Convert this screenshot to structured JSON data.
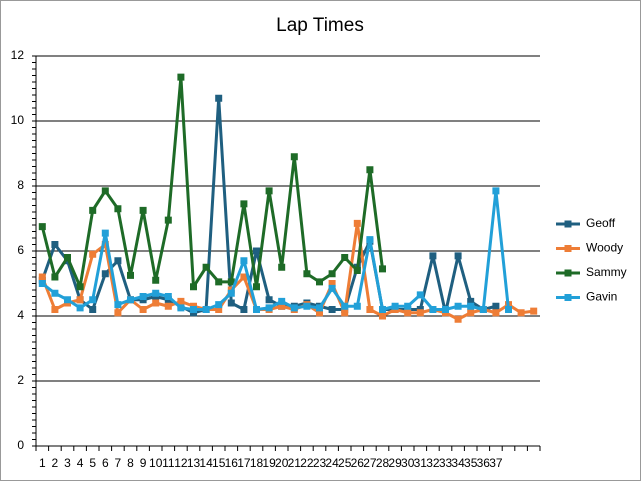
{
  "chart_data": {
    "type": "line",
    "title": "Lap Times",
    "categories": [
      "1",
      "2",
      "3",
      "4",
      "5",
      "6",
      "7",
      "8",
      "9",
      "10",
      "11",
      "12",
      "13",
      "14",
      "15",
      "16",
      "17",
      "18",
      "19",
      "20",
      "21",
      "22",
      "23",
      "24",
      "25",
      "26",
      "27",
      "28",
      "29",
      "30",
      "31",
      "32",
      "33",
      "34",
      "35",
      "36",
      "37",
      null,
      null,
      null
    ],
    "ylim": [
      0,
      12
    ],
    "yticks": [
      0,
      2,
      4,
      6,
      8,
      10,
      12
    ],
    "grid": true,
    "legend": "right",
    "series": [
      {
        "name": "Geoff",
        "color": "#1f5f80",
        "values": [
          5.1,
          6.2,
          5.7,
          4.5,
          4.2,
          5.3,
          5.7,
          4.5,
          4.5,
          4.6,
          4.5,
          4.3,
          4.1,
          4.2,
          10.7,
          4.4,
          4.2,
          6.0,
          4.5,
          4.3,
          4.3,
          4.4,
          4.3,
          4.2,
          4.2,
          5.5,
          6.3,
          4.2,
          4.2,
          4.2,
          4.2,
          5.85,
          4.1,
          5.85,
          4.45,
          4.2,
          4.3,
          null,
          null,
          null
        ]
      },
      {
        "name": "Woody",
        "color": "#ee7d36",
        "values": [
          5.2,
          4.2,
          4.4,
          4.5,
          5.9,
          6.2,
          4.1,
          4.5,
          4.2,
          4.4,
          4.3,
          4.45,
          4.3,
          4.2,
          4.2,
          4.8,
          5.2,
          4.2,
          4.2,
          4.3,
          4.2,
          4.35,
          4.1,
          5.0,
          4.1,
          6.85,
          4.2,
          4.0,
          4.2,
          4.1,
          4.1,
          4.2,
          4.1,
          3.9,
          4.1,
          4.2,
          4.1,
          4.35,
          4.1,
          4.15
        ]
      },
      {
        "name": "Sammy",
        "color": "#1e6b27",
        "values": [
          6.75,
          5.2,
          5.8,
          4.9,
          7.25,
          7.85,
          7.3,
          5.25,
          7.25,
          5.1,
          6.95,
          11.35,
          4.9,
          5.5,
          5.05,
          5.05,
          7.45,
          4.9,
          7.85,
          5.5,
          8.9,
          5.3,
          5.05,
          5.3,
          5.8,
          5.4,
          8.5,
          5.45,
          null,
          null,
          null,
          null,
          null,
          null,
          null,
          null,
          null,
          null,
          null,
          null
        ]
      },
      {
        "name": "Gavin",
        "color": "#22a0d8",
        "values": [
          5.0,
          4.7,
          4.5,
          4.25,
          4.5,
          6.55,
          4.35,
          4.5,
          4.6,
          4.7,
          4.6,
          4.25,
          4.2,
          4.2,
          4.35,
          4.7,
          5.7,
          4.2,
          4.25,
          4.45,
          4.25,
          4.3,
          4.25,
          4.85,
          4.3,
          4.3,
          6.35,
          4.2,
          4.3,
          4.3,
          4.65,
          4.2,
          4.2,
          4.3,
          4.3,
          4.2,
          7.85,
          4.2,
          null,
          null
        ]
      }
    ]
  }
}
